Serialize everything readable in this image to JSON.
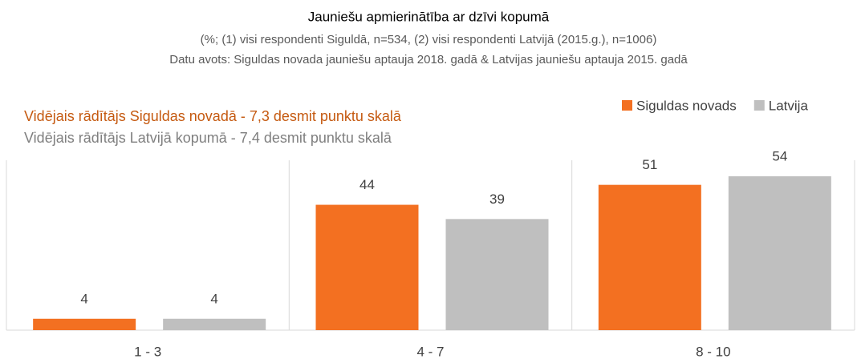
{
  "chart_data": {
    "type": "bar",
    "title": "Jauniešu apmierinātība ar dzīvi kopumā",
    "subtitle": [
      "(%; (1) visi respondenti Siguldā, n=534, (2) visi respondenti Latvijā (2015.g.), n=1006)",
      "Datu avots: Siguldas novada jauniešu aptauja 2018. gadā & Latvijas jauniešu aptauja 2015. gadā"
    ],
    "annotations": [
      {
        "text": "Vidējais rādītājs Siguldas novadā - 7,3 desmit punktu skalā",
        "color": "#c55a11"
      },
      {
        "text": "Vidējais rādītājs Latvijā kopumā - 7,4 desmit punktu skalā",
        "color": "#7f7f7f"
      }
    ],
    "categories": [
      "1 - 3",
      "4 - 7",
      "8 - 10"
    ],
    "series": [
      {
        "name": "Siguldas novads",
        "color": "#f37021",
        "values": [
          4,
          44,
          51
        ]
      },
      {
        "name": "Latvija",
        "color": "#bfbfbf",
        "values": [
          4,
          39,
          54
        ]
      }
    ],
    "legend": "top-right"
  }
}
